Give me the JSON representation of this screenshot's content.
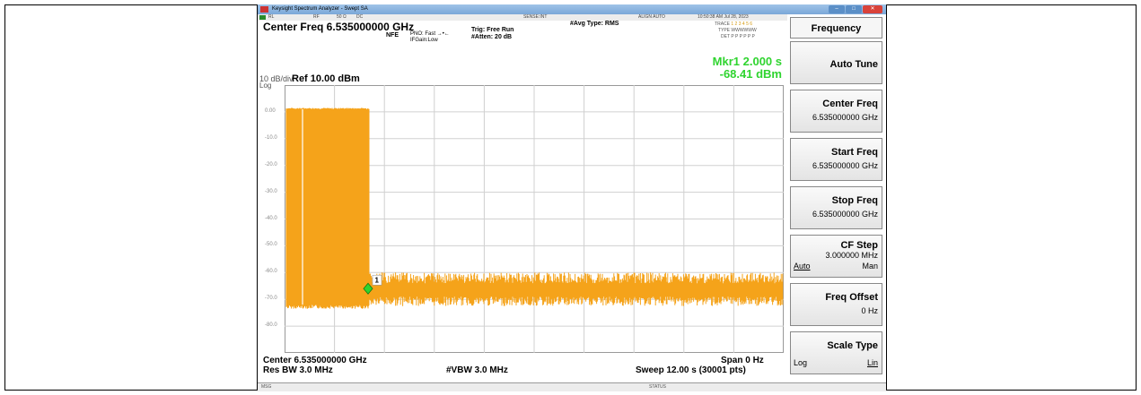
{
  "window": {
    "title": "Keysight Spectrum Analyzer - Swept SA",
    "status_bar": [
      "RL",
      "RF",
      "50 Ω",
      "DC",
      "SENSE:INT",
      "ALIGN AUTO",
      "10:50:38 AM Jul 28, 2023"
    ],
    "msg_label": "MSG",
    "status_label": "STATUS"
  },
  "header": {
    "center_freq": "Center Freq 6.535000000 GHz",
    "nfe": "NFE",
    "pno": "PNO: Fast",
    "ifgain": "IFGain:Low",
    "trig": "Trig: Free Run",
    "atten": "#Atten: 20 dB",
    "avg_type": "#Avg Type: RMS",
    "trace_label": "TRACE",
    "trace_nums": "1 2 3 4 5 6",
    "type_label": "TYPE",
    "type_value": "WWWWWW",
    "det_label": "DET",
    "det_value": "P P P P P P"
  },
  "marker": {
    "time": "Mkr1 2.000 s",
    "level": "-68.41 dBm",
    "label": "1"
  },
  "scale": {
    "div": "10 dB/div",
    "log": "Log",
    "ref": "Ref 10.00 dBm",
    "ticks": [
      "0.00",
      "-10.0",
      "-20.0",
      "-30.0",
      "-40.0",
      "-50.0",
      "-60.0",
      "-70.0",
      "-80.0"
    ]
  },
  "footer": {
    "center": "Center 6.535000000 GHz",
    "res_bw": "Res BW 3.0 MHz",
    "vbw": "#VBW 3.0 MHz",
    "span": "Span 0 Hz",
    "sweep": "Sweep  12.00 s (30001 pts)"
  },
  "softkeys": {
    "menu_title": "Frequency",
    "items": [
      {
        "label": "Auto Tune",
        "value": ""
      },
      {
        "label": "Center Freq",
        "value": "6.535000000 GHz"
      },
      {
        "label": "Start Freq",
        "value": "6.535000000 GHz"
      },
      {
        "label": "Stop Freq",
        "value": "6.535000000 GHz"
      },
      {
        "label": "CF Step",
        "value": "3.000000 MHz",
        "opt_left": "Auto",
        "opt_right": "Man"
      },
      {
        "label": "Freq Offset",
        "value": "0 Hz"
      },
      {
        "label": "Scale Type",
        "value": "",
        "opt_left": "Log",
        "opt_right": "Lin"
      }
    ]
  },
  "colors": {
    "trace": "#f5a31a",
    "marker": "#2fd42f",
    "grid": "#d0d0d0"
  }
}
